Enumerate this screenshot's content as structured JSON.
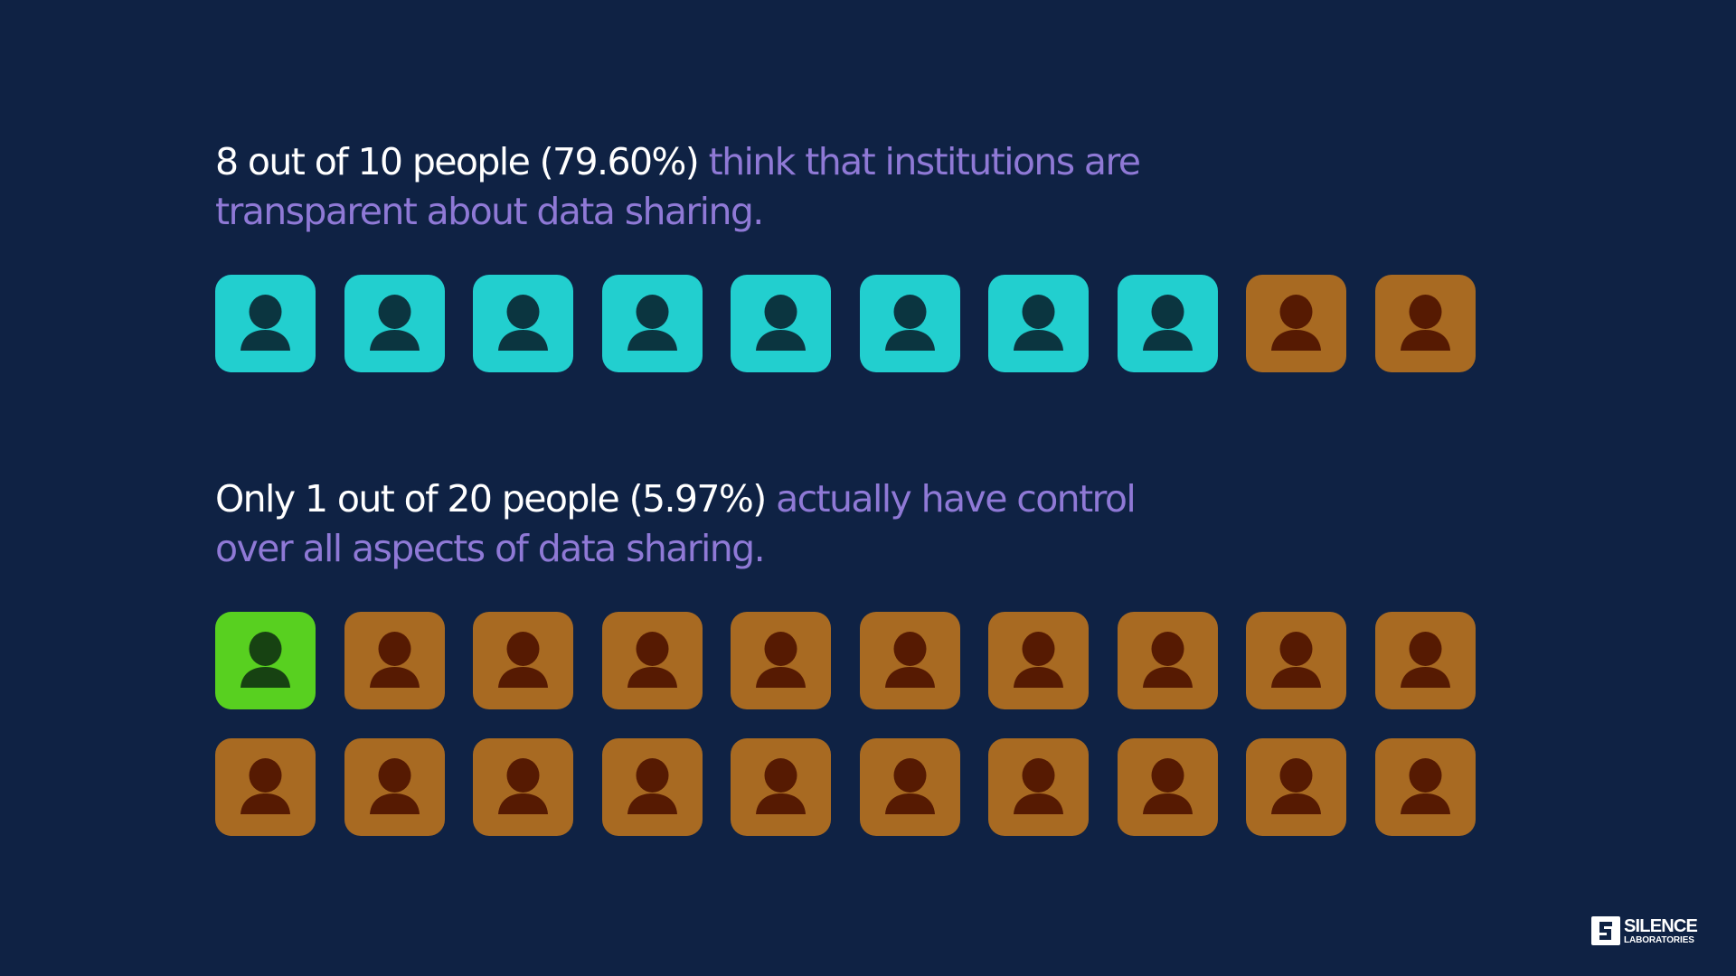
{
  "chart_data": [
    {
      "type": "pictogram",
      "headline_lead": "8 out of 10 people (79.60%)",
      "headline_rest": "think that institutions are transparent about data sharing.",
      "total": 10,
      "highlighted": 8,
      "per_row": 10,
      "highlight_color": "#22cfcf",
      "highlight_icon_color": "#0b3540",
      "other_color": "#a86a22",
      "other_icon_color": "#561a02"
    },
    {
      "type": "pictogram",
      "headline_lead": "Only 1 out of 20 people (5.97%)",
      "headline_rest": "actually have control over all aspects of data sharing.",
      "total": 20,
      "highlighted": 1,
      "per_row": 10,
      "highlight_color": "#58d020",
      "highlight_icon_color": "#174212",
      "other_color": "#a86a22",
      "other_icon_color": "#561a02"
    }
  ],
  "logo": {
    "line1": "SILENCE",
    "line2": "LABORATORIES"
  }
}
